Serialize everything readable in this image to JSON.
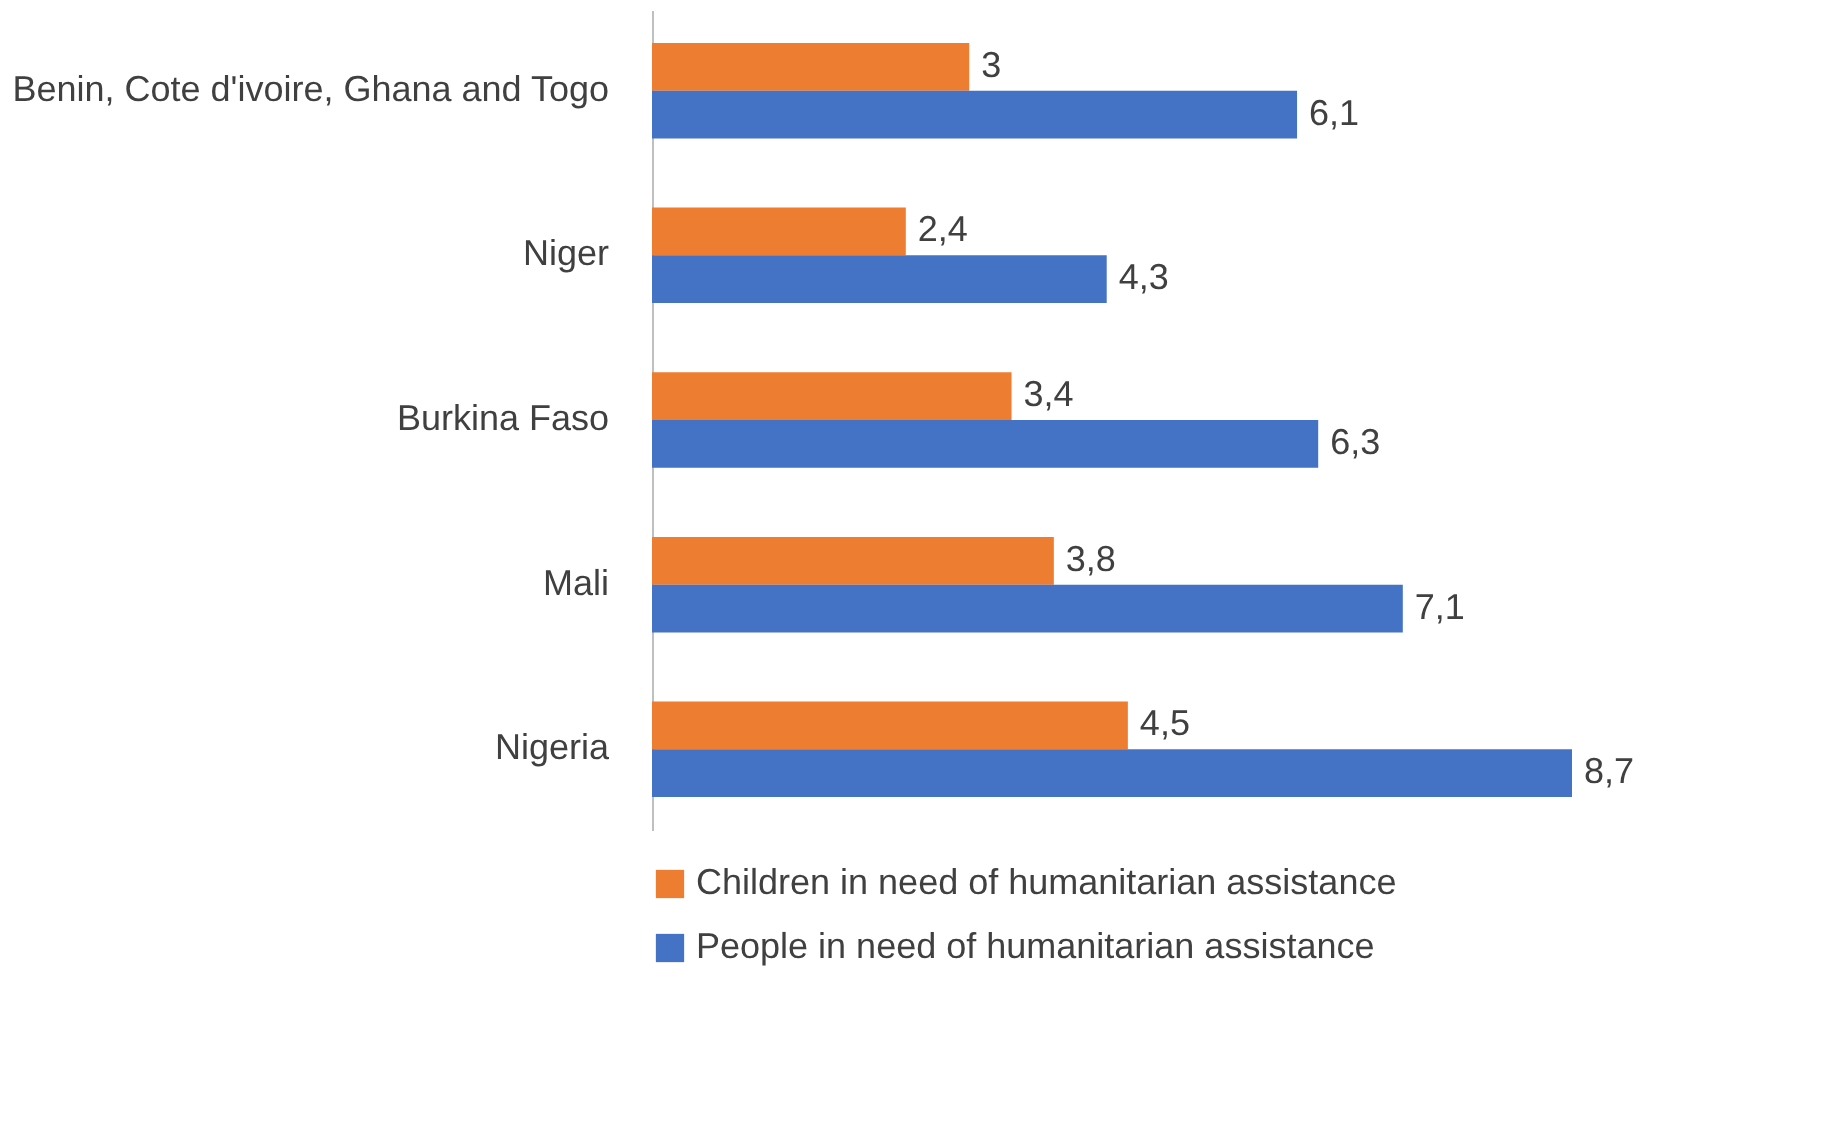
{
  "chart_data": {
    "type": "bar",
    "orientation": "horizontal",
    "categories": [
      "Benin, Cote d'ivoire, Ghana and Togo",
      "Niger",
      "Burkina Faso",
      "Mali",
      "Nigeria"
    ],
    "series": [
      {
        "name": "Children in need of humanitarian assistance",
        "color": "#ed7d31",
        "values": [
          3,
          2.4,
          3.4,
          3.8,
          4.5
        ],
        "value_labels": [
          "3",
          "2,4",
          "3,4",
          "3,8",
          "4,5"
        ]
      },
      {
        "name": "People in need of humanitarian assistance",
        "color": "#4472c4",
        "values": [
          6.1,
          4.3,
          6.3,
          7.1,
          8.7
        ],
        "value_labels": [
          "6,1",
          "4,3",
          "6,3",
          "7,1",
          "8,7"
        ]
      }
    ],
    "legend": "bottom",
    "grid": false
  }
}
